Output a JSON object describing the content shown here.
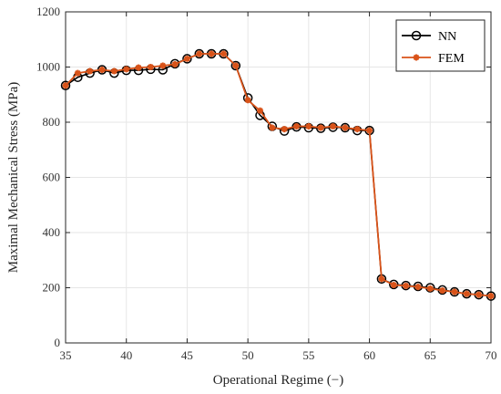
{
  "chart_data": {
    "type": "line",
    "title": "",
    "xlabel": "Operational Regime (−)",
    "ylabel": "Maximal Mechanical Stress (MPa)",
    "xlim": [
      35,
      70
    ],
    "ylim": [
      0,
      1200
    ],
    "xticks": [
      "35",
      "40",
      "45",
      "50",
      "55",
      "60",
      "65",
      "70"
    ],
    "yticks": [
      "0",
      "200",
      "400",
      "600",
      "800",
      "1000",
      "1200"
    ],
    "grid": true,
    "legend": "top-right",
    "x": [
      35,
      36,
      37,
      38,
      39,
      40,
      41,
      42,
      43,
      44,
      45,
      46,
      47,
      48,
      49,
      50,
      51,
      52,
      53,
      54,
      55,
      56,
      57,
      58,
      59,
      60,
      61,
      62,
      63,
      64,
      65,
      66,
      67,
      68,
      69,
      70
    ],
    "series": [
      {
        "name": "NN",
        "color": "#000000",
        "marker": "circle",
        "values": [
          933,
          963,
          978,
          990,
          978,
          988,
          988,
          992,
          990,
          1012,
          1030,
          1048,
          1048,
          1048,
          1005,
          888,
          825,
          785,
          768,
          783,
          780,
          778,
          782,
          780,
          770,
          770,
          232,
          212,
          208,
          205,
          200,
          192,
          185,
          178,
          175,
          170
        ]
      },
      {
        "name": "FEM",
        "color": "#d95319",
        "marker": "asterisk",
        "values": [
          933,
          978,
          985,
          990,
          985,
          992,
          998,
          1000,
          1005,
          1010,
          1030,
          1048,
          1048,
          1048,
          1005,
          880,
          842,
          780,
          775,
          785,
          785,
          780,
          785,
          780,
          775,
          770,
          232,
          210,
          207,
          203,
          197,
          190,
          185,
          178,
          175,
          170
        ]
      }
    ]
  }
}
